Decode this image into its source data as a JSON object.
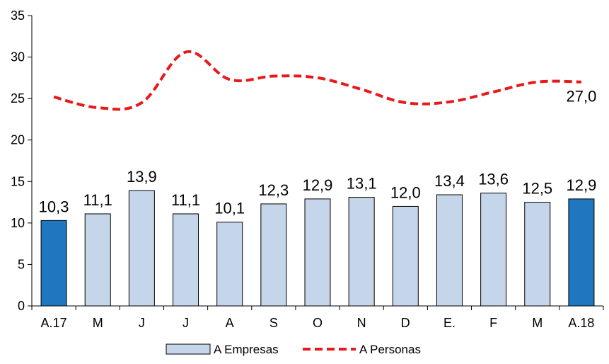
{
  "chart_data": {
    "type": "bar",
    "categories": [
      "A.17",
      "M",
      "J",
      "J",
      "A",
      "S",
      "O",
      "N",
      "D",
      "E.",
      "F",
      "M",
      "A.18"
    ],
    "series": [
      {
        "name": "A Empresas",
        "kind": "bar",
        "values": [
          10.3,
          11.1,
          13.9,
          11.1,
          10.1,
          12.3,
          12.9,
          13.1,
          12.0,
          13.4,
          13.6,
          12.5,
          12.9
        ],
        "labels": [
          "10,3",
          "11,1",
          "13,9",
          "11,1",
          "10,1",
          "12,3",
          "12,9",
          "13,1",
          "12,0",
          "13,4",
          "13,6",
          "12,5",
          "12,9"
        ],
        "color": "#c5d5ea",
        "highlight_color": "#1f77c0",
        "highlight_indices": [
          0,
          12
        ]
      },
      {
        "name": "A Personas",
        "kind": "line",
        "style": "dashed",
        "values": [
          25.2,
          23.9,
          24.5,
          30.6,
          27.3,
          27.7,
          27.5,
          26.1,
          24.5,
          24.6,
          25.8,
          27.0,
          27.0
        ],
        "last_label": "27,0",
        "color": "#e8191b"
      }
    ],
    "yticks": [
      "0",
      "5",
      "10",
      "15",
      "20",
      "25",
      "30",
      "35"
    ],
    "ylim": [
      0,
      35
    ],
    "grid": false,
    "legend_position": "bottom"
  }
}
